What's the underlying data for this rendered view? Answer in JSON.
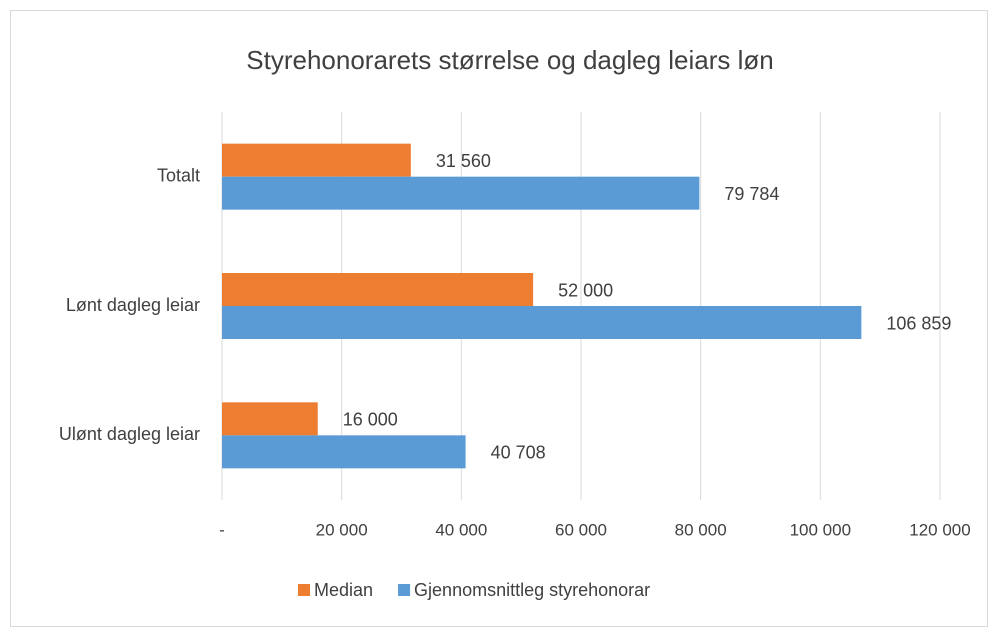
{
  "chart_data": {
    "type": "bar",
    "orientation": "horizontal",
    "title": "Styrehonorarets størrelse og dagleg leiars løn",
    "categories": [
      "Totalt",
      "Lønt dagleg leiar",
      "Ulønt dagleg leiar"
    ],
    "series": [
      {
        "name": "Median",
        "color": "#ed7d31",
        "values": [
          31560,
          52000,
          16000
        ],
        "value_labels": [
          "31 560",
          "52 000",
          "16 000"
        ]
      },
      {
        "name": "Gjennomsnittleg styrehonorar",
        "color": "#5b9bd5",
        "values": [
          79784,
          106859,
          40708
        ],
        "value_labels": [
          "79 784",
          "106 859",
          "40 708"
        ]
      }
    ],
    "xlim": [
      0,
      120000
    ],
    "xticks": [
      {
        "value": 0,
        "label": "-"
      },
      {
        "value": 20000,
        "label": "20 000"
      },
      {
        "value": 40000,
        "label": "40 000"
      },
      {
        "value": 60000,
        "label": "60 000"
      },
      {
        "value": 80000,
        "label": "80 000"
      },
      {
        "value": 100000,
        "label": "100 000"
      },
      {
        "value": 120000,
        "label": "120 000"
      }
    ],
    "grid": true,
    "legend": "bottom"
  }
}
